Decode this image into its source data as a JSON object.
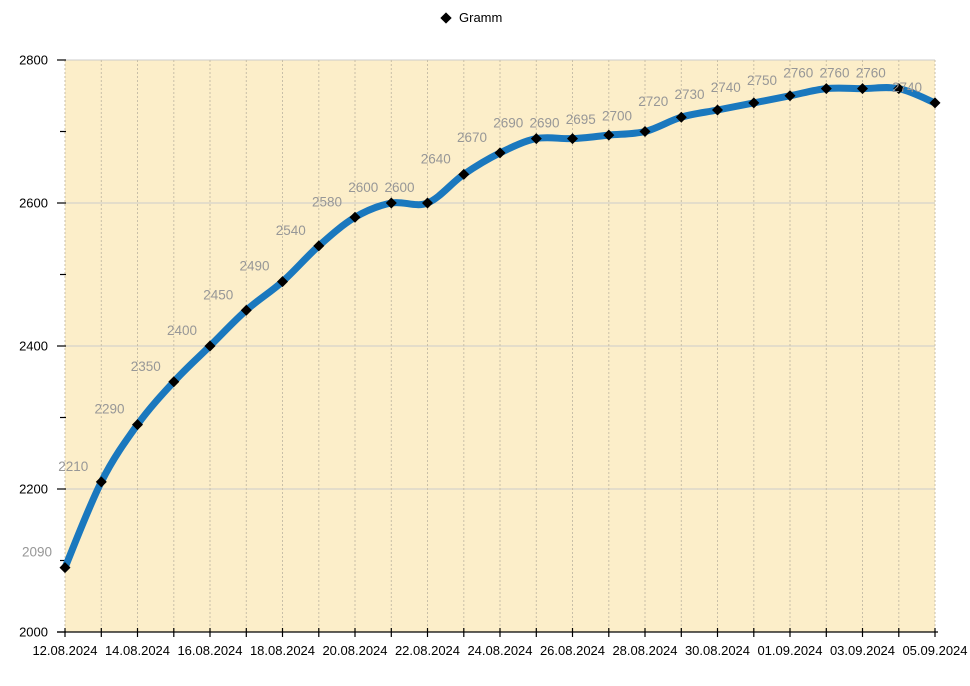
{
  "legend": {
    "label": "Gramm"
  },
  "colors": {
    "page_background": "#ffffff",
    "plot_background": "#fceec9",
    "line": "#1a78be",
    "marker": "#000000",
    "data_label": "#979797",
    "h_gridline": "#cccccc",
    "v_gridline": "#c8bfa8",
    "axis": "#000000",
    "axis_label": "#000000"
  },
  "chart_data": {
    "type": "line",
    "title": "",
    "legend_position": "top-center",
    "marker_shape": "diamond",
    "data_labels_visible": true,
    "series": [
      {
        "name": "Gramm",
        "values": [
          2090,
          2210,
          2290,
          2350,
          2400,
          2450,
          2490,
          2540,
          2580,
          2600,
          2600,
          2640,
          2670,
          2690,
          2690,
          2695,
          2700,
          2720,
          2730,
          2740,
          2750,
          2760,
          2760,
          2760,
          2740
        ]
      }
    ],
    "x_tick_labels": [
      "12.08.2024",
      "14.08.2024",
      "16.08.2024",
      "18.08.2024",
      "20.08.2024",
      "22.08.2024",
      "24.08.2024",
      "26.08.2024",
      "28.08.2024",
      "30.08.2024",
      "01.09.2024",
      "03.09.2024",
      "05.09.2024"
    ],
    "x_points_per_tick": 2,
    "y_axis": {
      "min": 2000,
      "max": 2800,
      "major_step": 200,
      "minor_step": 100,
      "tick_labels": [
        "2000",
        "2200",
        "2400",
        "2600",
        "2800"
      ]
    },
    "grid": {
      "horizontal": "solid",
      "vertical": "dashed"
    }
  }
}
